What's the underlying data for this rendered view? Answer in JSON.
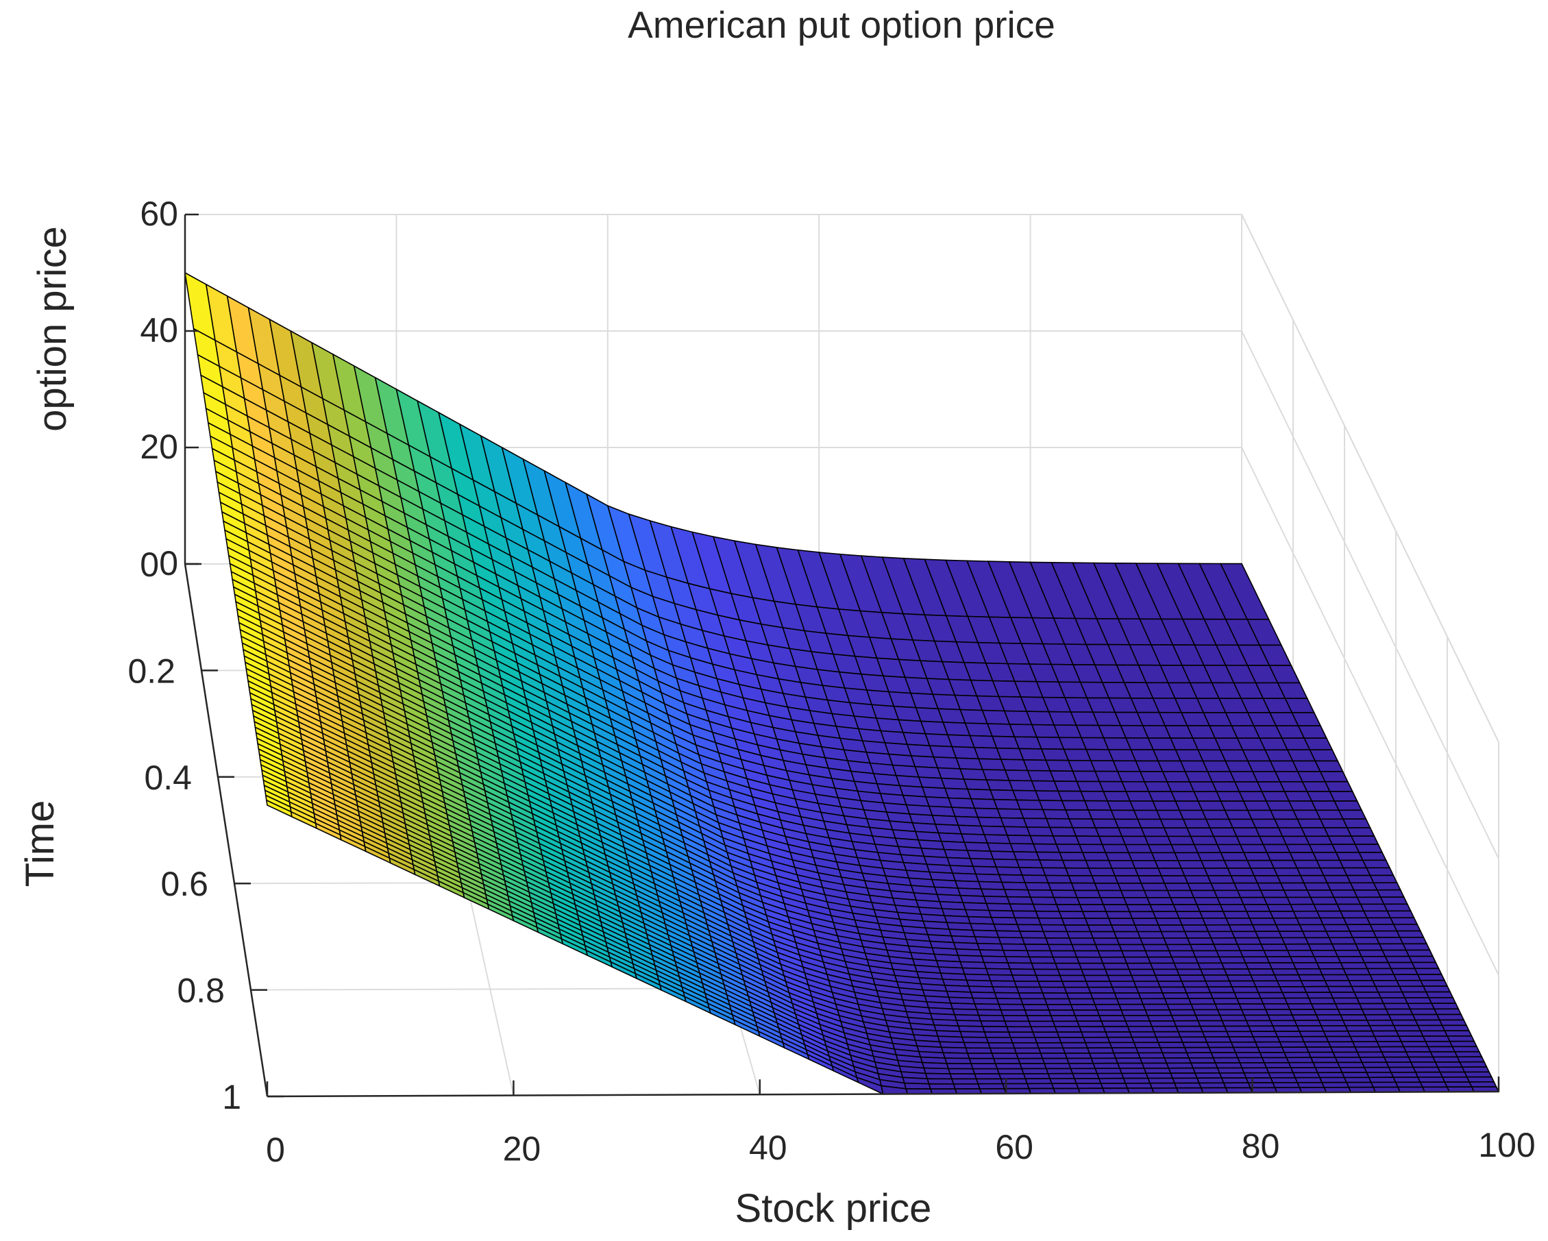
{
  "chart_data": {
    "type": "surface",
    "title": "American put option price",
    "xlabel": "Stock price",
    "ylabel": "Time",
    "zlabel": "option price",
    "x_ticks": [
      "0",
      "20",
      "40",
      "60",
      "80",
      "100"
    ],
    "y_ticks": [
      "0",
      "0.2",
      "0.4",
      "0.6",
      "0.8",
      "1"
    ],
    "z_ticks": [
      "0",
      "20",
      "40",
      "60"
    ],
    "xlim": [
      0,
      100
    ],
    "ylim": [
      0,
      1
    ],
    "zlim": [
      0,
      60
    ],
    "grid": true,
    "colormap": "parula",
    "strike": 50,
    "surface_samples": [
      {
        "stock_price": 0,
        "time": 0,
        "option_price": 50
      },
      {
        "stock_price": 0,
        "time": 1,
        "option_price": 50
      },
      {
        "stock_price": 20,
        "time": 0,
        "option_price": 30
      },
      {
        "stock_price": 40,
        "time": 0,
        "option_price": 10.3
      },
      {
        "stock_price": 50,
        "time": 0,
        "option_price": 4.2
      },
      {
        "stock_price": 60,
        "time": 0,
        "option_price": 1.6
      },
      {
        "stock_price": 80,
        "time": 0,
        "option_price": 0.2
      },
      {
        "stock_price": 100,
        "time": 0,
        "option_price": 0
      },
      {
        "stock_price": 50,
        "time": 1,
        "option_price": 0
      },
      {
        "stock_price": 100,
        "time": 1,
        "option_price": 0
      }
    ]
  },
  "colors": {
    "edge": "#000000",
    "grid": "#dcdcdc",
    "axis": "#262626",
    "background": "#ffffff"
  }
}
